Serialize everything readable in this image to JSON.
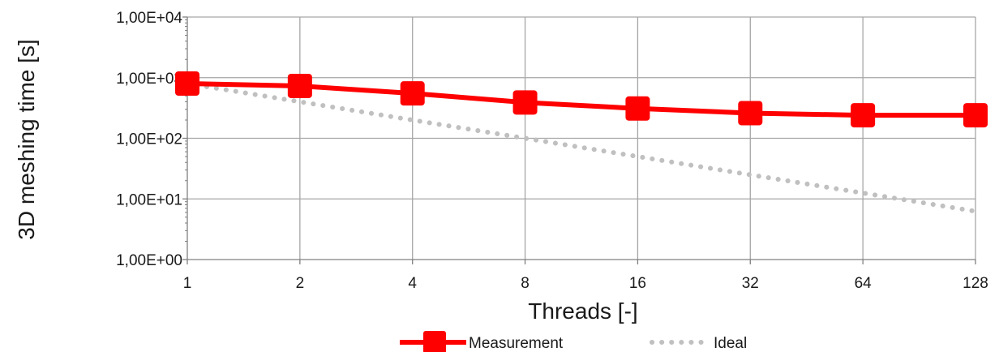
{
  "chart_data": {
    "type": "line",
    "xlabel": "Threads [-]",
    "ylabel": "3D meshing time [s]",
    "x_scale": "log2",
    "y_scale": "log10",
    "grid": true,
    "legend_position": "bottom",
    "x": [
      1,
      2,
      4,
      8,
      16,
      32,
      64,
      128
    ],
    "x_tick_labels": [
      "1",
      "2",
      "4",
      "8",
      "16",
      "32",
      "64",
      "128"
    ],
    "y_ticks": [
      1,
      10,
      100,
      1000,
      10000
    ],
    "y_tick_labels": [
      "1,00E+00",
      "1,00E+01",
      "1,00E+02",
      "1,00E+03",
      "1,00E+04"
    ],
    "ylim": [
      1,
      10000
    ],
    "series": [
      {
        "name": "Measurement",
        "color": "#ff0000",
        "style": "solid-square-markers",
        "values": [
          800,
          730,
          550,
          390,
          310,
          260,
          240,
          240
        ]
      },
      {
        "name": "Ideal",
        "color": "#c0c0c0",
        "style": "dotted",
        "values": [
          800,
          400,
          200,
          100,
          50,
          25,
          12.5,
          6.25
        ]
      }
    ]
  }
}
